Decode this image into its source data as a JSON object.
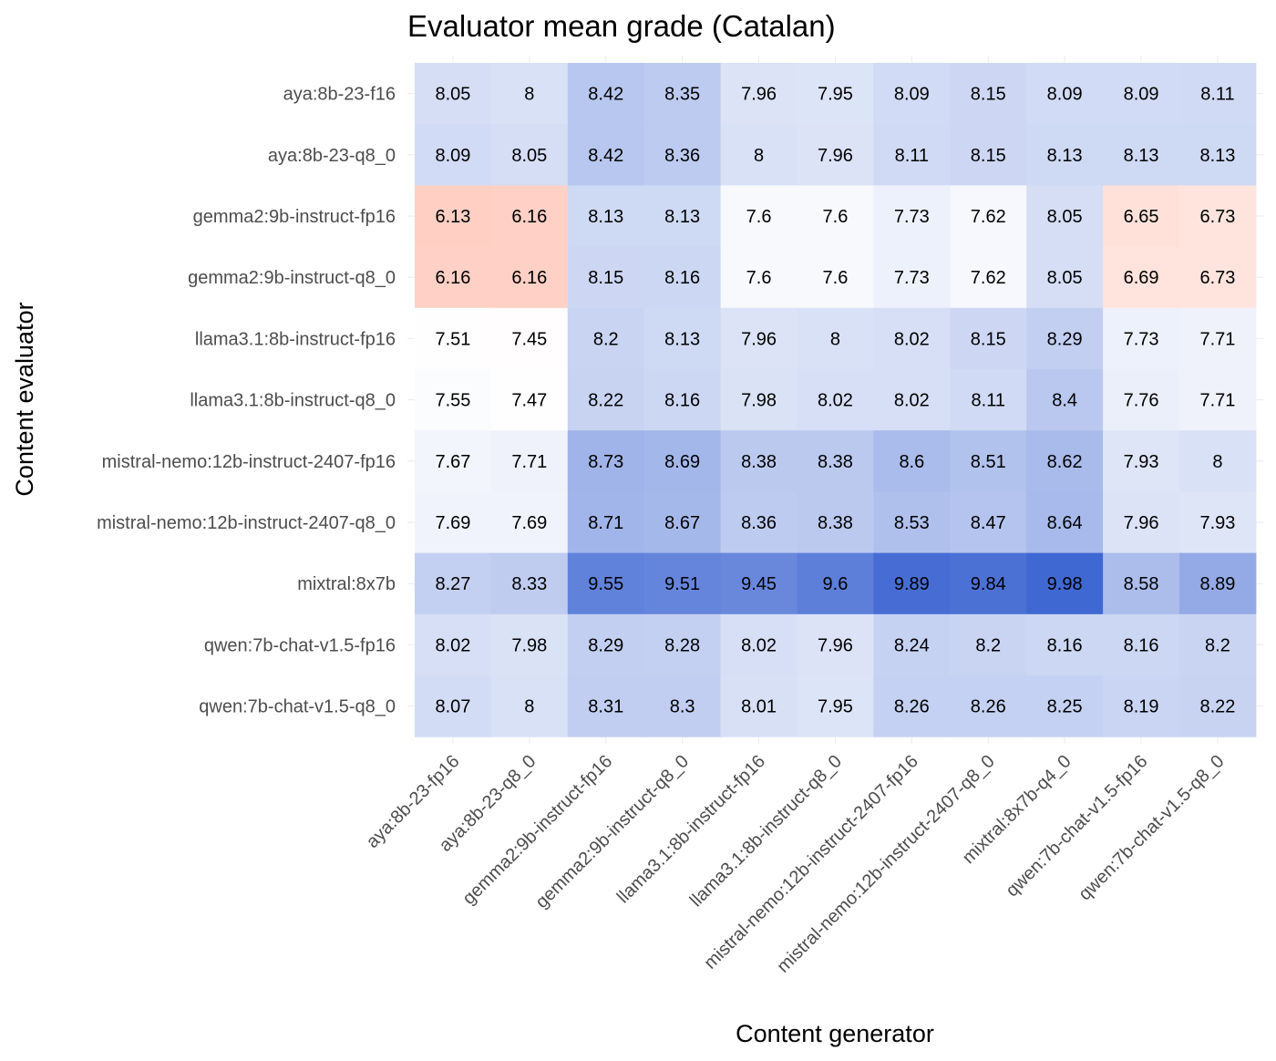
{
  "chart_data": {
    "type": "heatmap",
    "title": "Evaluator mean grade (Catalan)",
    "xlabel": "Content generator",
    "ylabel": "Content evaluator",
    "x_categories": [
      "aya:8b-23-fp16",
      "aya:8b-23-q8_0",
      "gemma2:9b-instruct-fp16",
      "gemma2:9b-instruct-q8_0",
      "llama3.1:8b-instruct-fp16",
      "llama3.1:8b-instruct-q8_0",
      "mistral-nemo:12b-instruct-2407-fp16",
      "mistral-nemo:12b-instruct-2407-q8_0",
      "mixtral:8x7b-q4_0",
      "qwen:7b-chat-v1.5-fp16",
      "qwen:7b-chat-v1.5-q8_0"
    ],
    "y_categories": [
      "aya:8b-23-f16",
      "aya:8b-23-q8_0",
      "gemma2:9b-instruct-fp16",
      "gemma2:9b-instruct-q8_0",
      "llama3.1:8b-instruct-fp16",
      "llama3.1:8b-instruct-q8_0",
      "mistral-nemo:12b-instruct-2407-fp16",
      "mistral-nemo:12b-instruct-2407-q8_0",
      "mixtral:8x7b",
      "qwen:7b-chat-v1.5-fp16",
      "qwen:7b-chat-v1.5-q8_0"
    ],
    "values": [
      [
        8.05,
        8,
        8.42,
        8.35,
        7.96,
        7.95,
        8.09,
        8.15,
        8.09,
        8.09,
        8.11
      ],
      [
        8.09,
        8.05,
        8.42,
        8.36,
        8,
        7.96,
        8.11,
        8.15,
        8.13,
        8.13,
        8.13
      ],
      [
        6.13,
        6.16,
        8.13,
        8.13,
        7.6,
        7.6,
        7.73,
        7.62,
        8.05,
        6.65,
        6.73
      ],
      [
        6.16,
        6.16,
        8.15,
        8.16,
        7.6,
        7.6,
        7.73,
        7.62,
        8.05,
        6.69,
        6.73
      ],
      [
        7.51,
        7.45,
        8.2,
        8.13,
        7.96,
        8,
        8.02,
        8.15,
        8.29,
        7.73,
        7.71
      ],
      [
        7.55,
        7.47,
        8.22,
        8.16,
        7.98,
        8.02,
        8.02,
        8.11,
        8.4,
        7.76,
        7.71
      ],
      [
        7.67,
        7.71,
        8.73,
        8.69,
        8.38,
        8.38,
        8.6,
        8.51,
        8.62,
        7.93,
        8
      ],
      [
        7.69,
        7.69,
        8.71,
        8.67,
        8.36,
        8.38,
        8.53,
        8.47,
        8.64,
        7.96,
        7.93
      ],
      [
        8.27,
        8.33,
        9.55,
        9.51,
        9.45,
        9.6,
        9.89,
        9.84,
        9.98,
        8.58,
        8.89
      ],
      [
        8.02,
        7.98,
        8.29,
        8.28,
        8.02,
        7.96,
        8.24,
        8.2,
        8.16,
        8.16,
        8.2
      ],
      [
        8.07,
        8,
        8.31,
        8.3,
        8.01,
        7.95,
        8.26,
        8.26,
        8.25,
        8.19,
        8.22
      ]
    ],
    "color_scale": {
      "low": "#ffcfc4",
      "mid": "#ffffff",
      "high": "#4068d3"
    },
    "legend": "none",
    "grid": true
  }
}
